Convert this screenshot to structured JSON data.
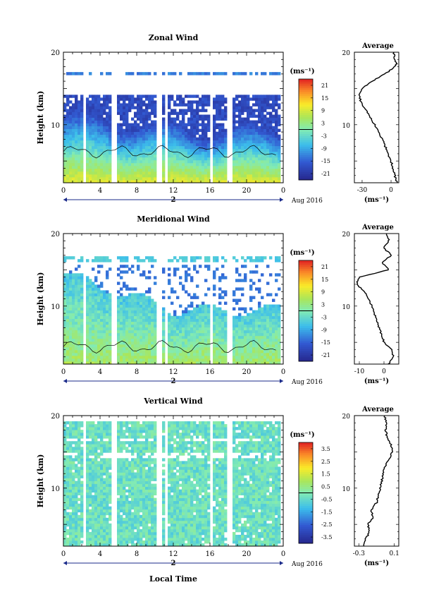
{
  "figure": {
    "time_axis_label": "Local Time",
    "date_label": "Aug 2016",
    "day_label": "2",
    "y_axis_label": "Height (km)",
    "avg_title": "Average",
    "unit_label": "(ms⁻¹)",
    "avg_xlabel": "(ms⁻¹)"
  },
  "chart_data": [
    {
      "type": "heatmap",
      "title": "Zonal Wind",
      "ylabel": "Height (km)",
      "x_ticks": [
        "0",
        "4",
        "8",
        "12",
        "16",
        "20",
        "0"
      ],
      "x_range": [
        0,
        24
      ],
      "y_ticks": [
        "10",
        "20"
      ],
      "y_range": [
        2,
        20
      ],
      "colorbar": {
        "label": "(ms⁻¹)",
        "ticks": [
          21,
          15,
          9,
          3,
          -3,
          -9,
          -15,
          -21
        ],
        "range": [
          -24,
          24
        ]
      },
      "data_gaps_hours": [
        2.3,
        5.6,
        10.5,
        11.3,
        16.2,
        18.1
      ],
      "average_profile": {
        "title": "Average",
        "xlabel": "(ms⁻¹)",
        "x_ticks": [
          "-30",
          "0"
        ],
        "x_range": [
          -38,
          8
        ],
        "height_km": [
          2,
          3,
          4,
          5,
          6,
          7,
          8,
          9,
          10,
          11,
          12,
          13,
          14,
          15,
          16,
          17,
          18,
          18.5,
          19,
          20
        ],
        "values": [
          6,
          4,
          2,
          0,
          -3,
          -6,
          -9,
          -13,
          -17,
          -21,
          -26,
          -31,
          -33,
          -30,
          -20,
          -6,
          4,
          6,
          4,
          3
        ]
      }
    },
    {
      "type": "heatmap",
      "title": "Meridional Wind",
      "ylabel": "Height (km)",
      "x_ticks": [
        "0",
        "4",
        "8",
        "12",
        "16",
        "20",
        "0"
      ],
      "x_range": [
        0,
        24
      ],
      "y_ticks": [
        "10",
        "20"
      ],
      "y_range": [
        2,
        20
      ],
      "colorbar": {
        "label": "(ms⁻¹)",
        "ticks": [
          21,
          15,
          9,
          3,
          -3,
          -9,
          -15,
          -21
        ],
        "range": [
          -24,
          24
        ]
      },
      "data_gaps_hours": [
        2.3,
        5.6,
        10.5,
        11.3,
        16.2,
        18.1
      ],
      "average_profile": {
        "title": "Average",
        "xlabel": "(ms⁻¹)",
        "x_ticks": [
          "-10",
          "0"
        ],
        "x_range": [
          -12,
          6
        ],
        "height_km": [
          2,
          3,
          4,
          5,
          6,
          7,
          8,
          9,
          10,
          11,
          12,
          13,
          14,
          15,
          16,
          17,
          18,
          19,
          20
        ],
        "values": [
          2,
          4,
          3,
          0,
          -1,
          -2,
          -3,
          -4,
          -5,
          -6,
          -8,
          -11,
          -10,
          2,
          -1,
          3,
          0,
          2,
          1
        ]
      }
    },
    {
      "type": "heatmap",
      "title": "Vertical Wind",
      "ylabel": "Height (km)",
      "xlabel": "Local Time",
      "x_ticks": [
        "0",
        "4",
        "8",
        "12",
        "16",
        "20",
        "0"
      ],
      "x_range": [
        0,
        24
      ],
      "y_ticks": [
        "10",
        "20"
      ],
      "y_range": [
        2,
        20
      ],
      "colorbar": {
        "label": "(ms⁻¹)",
        "ticks": [
          3.5,
          2.5,
          1.5,
          0.5,
          -0.5,
          -1.5,
          -2.5,
          -3.5
        ],
        "range": [
          -4,
          4
        ]
      },
      "data_gaps_hours": [
        2.3,
        5.6,
        10.5,
        11.3,
        16.2,
        18.1
      ],
      "average_profile": {
        "title": "Average",
        "xlabel": "(ms⁻¹)",
        "x_ticks": [
          "-0.3",
          "0.1"
        ],
        "x_range": [
          -0.35,
          0.15
        ],
        "height_km": [
          2,
          3,
          4,
          5,
          6,
          7,
          8,
          9,
          10,
          11,
          12,
          13,
          14,
          15,
          16,
          17,
          18,
          19,
          20
        ],
        "values": [
          -0.25,
          -0.22,
          -0.18,
          -0.2,
          -0.14,
          -0.16,
          -0.1,
          -0.08,
          -0.06,
          -0.04,
          -0.03,
          0.0,
          0.04,
          0.08,
          0.06,
          0.02,
          0.0,
          0.01,
          -0.01
        ]
      }
    }
  ]
}
